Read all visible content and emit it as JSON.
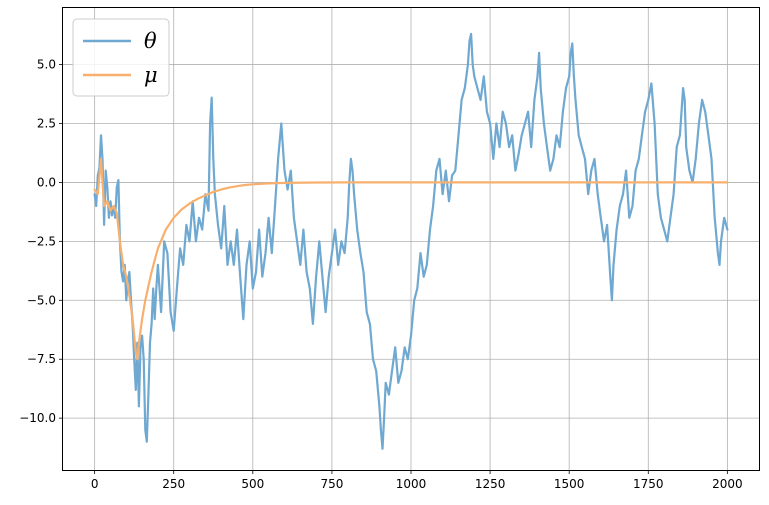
{
  "chart_data": {
    "type": "line",
    "title": "",
    "xlabel": "",
    "ylabel": "",
    "xlim": [
      -100,
      2100
    ],
    "ylim": [
      -12.2,
      7.4
    ],
    "x_ticks": [
      0,
      250,
      500,
      750,
      1000,
      1250,
      1500,
      1750,
      2000
    ],
    "x_tick_labels": [
      "0",
      "250",
      "500",
      "750",
      "1000",
      "1250",
      "1500",
      "1750",
      "2000"
    ],
    "y_ticks": [
      -10.0,
      -7.5,
      -5.0,
      -2.5,
      0.0,
      2.5,
      5.0
    ],
    "y_tick_labels": [
      "−10.0",
      "−7.5",
      "−5.0",
      "−2.5",
      "0.0",
      "2.5",
      "5.0"
    ],
    "grid": true,
    "legend_position": "top-left",
    "legend": [
      "θ",
      "μ"
    ],
    "series": [
      {
        "name": "θ",
        "color": "#6fa8d0",
        "points": [
          [
            0,
            -0.5
          ],
          [
            5,
            -1.0
          ],
          [
            10,
            0.3
          ],
          [
            15,
            0.6
          ],
          [
            20,
            2.0
          ],
          [
            25,
            1.0
          ],
          [
            30,
            -1.8
          ],
          [
            35,
            0.5
          ],
          [
            40,
            -0.2
          ],
          [
            45,
            -1.5
          ],
          [
            50,
            -0.8
          ],
          [
            55,
            -1.4
          ],
          [
            60,
            -1.0
          ],
          [
            65,
            -1.5
          ],
          [
            70,
            -0.2
          ],
          [
            75,
            0.1
          ],
          [
            80,
            -2.5
          ],
          [
            85,
            -3.8
          ],
          [
            90,
            -4.2
          ],
          [
            95,
            -3.5
          ],
          [
            100,
            -5.0
          ],
          [
            105,
            -4.2
          ],
          [
            110,
            -3.8
          ],
          [
            115,
            -5.0
          ],
          [
            120,
            -6.0
          ],
          [
            125,
            -7.5
          ],
          [
            130,
            -8.8
          ],
          [
            135,
            -6.8
          ],
          [
            140,
            -9.5
          ],
          [
            145,
            -7.0
          ],
          [
            150,
            -6.5
          ],
          [
            155,
            -7.5
          ],
          [
            160,
            -10.5
          ],
          [
            165,
            -11.0
          ],
          [
            170,
            -9.0
          ],
          [
            175,
            -6.8
          ],
          [
            180,
            -6.0
          ],
          [
            185,
            -4.5
          ],
          [
            190,
            -5.8
          ],
          [
            195,
            -4.5
          ],
          [
            200,
            -3.5
          ],
          [
            210,
            -5.5
          ],
          [
            220,
            -2.5
          ],
          [
            230,
            -3.0
          ],
          [
            240,
            -5.5
          ],
          [
            250,
            -6.3
          ],
          [
            260,
            -4.5
          ],
          [
            270,
            -2.8
          ],
          [
            280,
            -3.5
          ],
          [
            290,
            -1.8
          ],
          [
            300,
            -2.5
          ],
          [
            310,
            -0.8
          ],
          [
            320,
            -2.5
          ],
          [
            330,
            -1.5
          ],
          [
            340,
            -2.0
          ],
          [
            350,
            -0.5
          ],
          [
            360,
            -1.2
          ],
          [
            365,
            2.5
          ],
          [
            370,
            3.6
          ],
          [
            375,
            1.0
          ],
          [
            380,
            -0.5
          ],
          [
            390,
            -1.8
          ],
          [
            400,
            -2.8
          ],
          [
            410,
            -1.0
          ],
          [
            420,
            -3.5
          ],
          [
            430,
            -2.5
          ],
          [
            440,
            -3.5
          ],
          [
            450,
            -2.0
          ],
          [
            460,
            -4.0
          ],
          [
            470,
            -5.8
          ],
          [
            480,
            -3.5
          ],
          [
            490,
            -2.5
          ],
          [
            500,
            -4.5
          ],
          [
            510,
            -3.8
          ],
          [
            520,
            -2.0
          ],
          [
            530,
            -4.0
          ],
          [
            540,
            -3.0
          ],
          [
            550,
            -1.5
          ],
          [
            560,
            -3.0
          ],
          [
            570,
            -1.0
          ],
          [
            580,
            1.0
          ],
          [
            590,
            2.5
          ],
          [
            600,
            0.5
          ],
          [
            610,
            -0.3
          ],
          [
            620,
            0.5
          ],
          [
            630,
            -1.5
          ],
          [
            640,
            -2.5
          ],
          [
            650,
            -3.5
          ],
          [
            660,
            -2.0
          ],
          [
            670,
            -3.8
          ],
          [
            680,
            -4.5
          ],
          [
            690,
            -6.0
          ],
          [
            700,
            -4.0
          ],
          [
            710,
            -2.5
          ],
          [
            720,
            -4.0
          ],
          [
            730,
            -5.5
          ],
          [
            740,
            -4.0
          ],
          [
            750,
            -3.0
          ],
          [
            760,
            -2.0
          ],
          [
            770,
            -3.5
          ],
          [
            780,
            -2.5
          ],
          [
            790,
            -3.0
          ],
          [
            800,
            -1.5
          ],
          [
            805,
            0.0
          ],
          [
            810,
            1.0
          ],
          [
            815,
            0.5
          ],
          [
            820,
            -0.5
          ],
          [
            830,
            -2.0
          ],
          [
            840,
            -3.0
          ],
          [
            850,
            -3.8
          ],
          [
            860,
            -5.5
          ],
          [
            870,
            -6.0
          ],
          [
            880,
            -7.5
          ],
          [
            890,
            -8.0
          ],
          [
            900,
            -9.5
          ],
          [
            905,
            -10.5
          ],
          [
            910,
            -11.3
          ],
          [
            915,
            -10.0
          ],
          [
            920,
            -8.5
          ],
          [
            930,
            -9.0
          ],
          [
            940,
            -8.0
          ],
          [
            950,
            -7.0
          ],
          [
            960,
            -8.5
          ],
          [
            970,
            -8.0
          ],
          [
            980,
            -7.0
          ],
          [
            990,
            -7.5
          ],
          [
            1000,
            -6.5
          ],
          [
            1010,
            -5.0
          ],
          [
            1020,
            -4.5
          ],
          [
            1030,
            -3.0
          ],
          [
            1040,
            -4.0
          ],
          [
            1050,
            -3.5
          ],
          [
            1060,
            -2.0
          ],
          [
            1070,
            -1.0
          ],
          [
            1080,
            0.5
          ],
          [
            1090,
            1.0
          ],
          [
            1100,
            -0.5
          ],
          [
            1110,
            0.5
          ],
          [
            1120,
            -0.8
          ],
          [
            1130,
            0.3
          ],
          [
            1140,
            0.5
          ],
          [
            1150,
            2.0
          ],
          [
            1160,
            3.5
          ],
          [
            1170,
            4.0
          ],
          [
            1180,
            5.0
          ],
          [
            1185,
            6.0
          ],
          [
            1190,
            6.3
          ],
          [
            1195,
            5.0
          ],
          [
            1200,
            4.5
          ],
          [
            1210,
            4.0
          ],
          [
            1220,
            3.5
          ],
          [
            1230,
            4.5
          ],
          [
            1240,
            3.0
          ],
          [
            1250,
            2.5
          ],
          [
            1260,
            1.0
          ],
          [
            1270,
            2.5
          ],
          [
            1280,
            1.5
          ],
          [
            1290,
            3.0
          ],
          [
            1300,
            2.5
          ],
          [
            1310,
            1.5
          ],
          [
            1320,
            2.0
          ],
          [
            1330,
            0.5
          ],
          [
            1340,
            1.2
          ],
          [
            1350,
            2.0
          ],
          [
            1360,
            2.5
          ],
          [
            1370,
            3.0
          ],
          [
            1380,
            1.5
          ],
          [
            1390,
            3.5
          ],
          [
            1400,
            4.5
          ],
          [
            1405,
            5.5
          ],
          [
            1410,
            4.0
          ],
          [
            1420,
            2.5
          ],
          [
            1430,
            1.5
          ],
          [
            1440,
            0.5
          ],
          [
            1450,
            1.0
          ],
          [
            1460,
            2.0
          ],
          [
            1470,
            1.5
          ],
          [
            1480,
            3.0
          ],
          [
            1490,
            4.0
          ],
          [
            1500,
            4.5
          ],
          [
            1505,
            5.5
          ],
          [
            1510,
            5.9
          ],
          [
            1515,
            4.5
          ],
          [
            1520,
            3.5
          ],
          [
            1530,
            2.0
          ],
          [
            1540,
            1.5
          ],
          [
            1550,
            1.0
          ],
          [
            1560,
            -0.5
          ],
          [
            1570,
            0.5
          ],
          [
            1580,
            1.0
          ],
          [
            1590,
            -0.5
          ],
          [
            1600,
            -1.5
          ],
          [
            1610,
            -2.5
          ],
          [
            1620,
            -1.8
          ],
          [
            1630,
            -4.0
          ],
          [
            1635,
            -5.0
          ],
          [
            1640,
            -3.5
          ],
          [
            1650,
            -2.0
          ],
          [
            1660,
            -1.0
          ],
          [
            1670,
            -0.5
          ],
          [
            1680,
            0.5
          ],
          [
            1690,
            -1.5
          ],
          [
            1700,
            -1.0
          ],
          [
            1710,
            0.5
          ],
          [
            1720,
            1.0
          ],
          [
            1730,
            2.0
          ],
          [
            1740,
            3.0
          ],
          [
            1750,
            3.5
          ],
          [
            1760,
            4.2
          ],
          [
            1770,
            2.5
          ],
          [
            1780,
            -0.5
          ],
          [
            1790,
            -1.5
          ],
          [
            1800,
            -2.0
          ],
          [
            1810,
            -2.5
          ],
          [
            1820,
            -1.5
          ],
          [
            1830,
            -0.5
          ],
          [
            1840,
            1.5
          ],
          [
            1850,
            2.0
          ],
          [
            1855,
            3.0
          ],
          [
            1860,
            4.0
          ],
          [
            1865,
            3.5
          ],
          [
            1870,
            1.5
          ],
          [
            1880,
            0.5
          ],
          [
            1890,
            0.0
          ],
          [
            1900,
            1.0
          ],
          [
            1910,
            2.5
          ],
          [
            1920,
            3.5
          ],
          [
            1930,
            3.0
          ],
          [
            1940,
            2.0
          ],
          [
            1950,
            1.0
          ],
          [
            1960,
            -1.5
          ],
          [
            1970,
            -3.0
          ],
          [
            1975,
            -3.5
          ],
          [
            1980,
            -2.5
          ],
          [
            1990,
            -1.5
          ],
          [
            2000,
            -2.0
          ]
        ]
      },
      {
        "name": "μ",
        "color": "#f7b06e",
        "points": [
          [
            0,
            -0.3
          ],
          [
            10,
            -0.5
          ],
          [
            20,
            1.0
          ],
          [
            30,
            -1.0
          ],
          [
            40,
            -0.8
          ],
          [
            50,
            -1.2
          ],
          [
            60,
            -1.0
          ],
          [
            70,
            -1.3
          ],
          [
            80,
            -2.5
          ],
          [
            90,
            -3.5
          ],
          [
            100,
            -4.0
          ],
          [
            110,
            -4.8
          ],
          [
            120,
            -5.8
          ],
          [
            130,
            -7.2
          ],
          [
            135,
            -7.5
          ],
          [
            140,
            -6.8
          ],
          [
            150,
            -5.8
          ],
          [
            160,
            -5.0
          ],
          [
            170,
            -4.4
          ],
          [
            180,
            -3.8
          ],
          [
            190,
            -3.3
          ],
          [
            200,
            -2.8
          ],
          [
            225,
            -2.0
          ],
          [
            250,
            -1.5
          ],
          [
            275,
            -1.15
          ],
          [
            300,
            -0.9
          ],
          [
            325,
            -0.7
          ],
          [
            350,
            -0.55
          ],
          [
            375,
            -0.4
          ],
          [
            400,
            -0.3
          ],
          [
            425,
            -0.22
          ],
          [
            450,
            -0.16
          ],
          [
            475,
            -0.11
          ],
          [
            500,
            -0.08
          ],
          [
            550,
            -0.04
          ],
          [
            600,
            -0.02
          ],
          [
            700,
            -0.005
          ],
          [
            800,
            0.0
          ],
          [
            1000,
            0.0
          ],
          [
            1500,
            0.0
          ],
          [
            2000,
            0.0
          ]
        ]
      }
    ]
  }
}
